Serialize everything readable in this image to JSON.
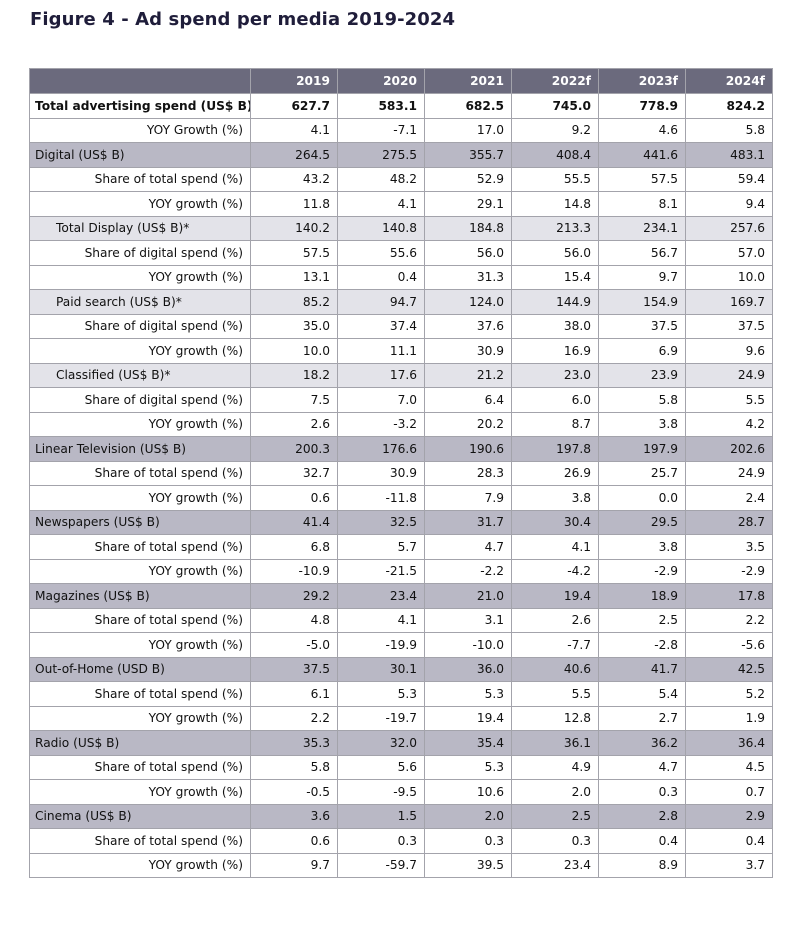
{
  "title": "Figure 4 - Ad spend per media 2019-2024",
  "chart_data": {
    "type": "table",
    "title": "Figure 4 - Ad spend per media 2019-2024",
    "columns": [
      "2019",
      "2020",
      "2021",
      "2022f",
      "2023f",
      "2024f"
    ],
    "rows": [
      {
        "label": "Total advertising spend (US$ B)",
        "level": "total",
        "values": [
          "627.7",
          "583.1",
          "682.5",
          "745.0",
          "778.9",
          "824.2"
        ]
      },
      {
        "label": "YOY Growth (%)",
        "level": "sub",
        "values": [
          "4.1",
          "-7.1",
          "17.0",
          "9.2",
          "4.6",
          "5.8"
        ]
      },
      {
        "label": "Digital (US$ B)",
        "level": "group",
        "values": [
          "264.5",
          "275.5",
          "355.7",
          "408.4",
          "441.6",
          "483.1"
        ]
      },
      {
        "label": "Share of total spend (%)",
        "level": "sub",
        "values": [
          "43.2",
          "48.2",
          "52.9",
          "55.5",
          "57.5",
          "59.4"
        ]
      },
      {
        "label": "YOY growth (%)",
        "level": "sub",
        "values": [
          "11.8",
          "4.1",
          "29.1",
          "14.8",
          "8.1",
          "9.4"
        ]
      },
      {
        "label": "Total Display (US$ B)*",
        "level": "subgroup",
        "values": [
          "140.2",
          "140.8",
          "184.8",
          "213.3",
          "234.1",
          "257.6"
        ]
      },
      {
        "label": "Share of digital spend (%)",
        "level": "sub",
        "values": [
          "57.5",
          "55.6",
          "56.0",
          "56.0",
          "56.7",
          "57.0"
        ]
      },
      {
        "label": "YOY growth (%)",
        "level": "sub",
        "values": [
          "13.1",
          "0.4",
          "31.3",
          "15.4",
          "9.7",
          "10.0"
        ]
      },
      {
        "label": "Paid search (US$ B)*",
        "level": "subgroup",
        "values": [
          "85.2",
          "94.7",
          "124.0",
          "144.9",
          "154.9",
          "169.7"
        ]
      },
      {
        "label": "Share of digital spend (%)",
        "level": "sub",
        "values": [
          "35.0",
          "37.4",
          "37.6",
          "38.0",
          "37.5",
          "37.5"
        ]
      },
      {
        "label": "YOY growth (%)",
        "level": "sub",
        "values": [
          "10.0",
          "11.1",
          "30.9",
          "16.9",
          "6.9",
          "9.6"
        ]
      },
      {
        "label": "Classified (US$ B)*",
        "level": "subgroup",
        "values": [
          "18.2",
          "17.6",
          "21.2",
          "23.0",
          "23.9",
          "24.9"
        ]
      },
      {
        "label": "Share of digital spend (%)",
        "level": "sub",
        "values": [
          "7.5",
          "7.0",
          "6.4",
          "6.0",
          "5.8",
          "5.5"
        ]
      },
      {
        "label": "YOY growth (%)",
        "level": "sub",
        "values": [
          "2.6",
          "-3.2",
          "20.2",
          "8.7",
          "3.8",
          "4.2"
        ]
      },
      {
        "label": "Linear Television (US$ B)",
        "level": "group",
        "values": [
          "200.3",
          "176.6",
          "190.6",
          "197.8",
          "197.9",
          "202.6"
        ]
      },
      {
        "label": "Share of total spend (%)",
        "level": "sub",
        "values": [
          "32.7",
          "30.9",
          "28.3",
          "26.9",
          "25.7",
          "24.9"
        ]
      },
      {
        "label": "YOY growth (%)",
        "level": "sub",
        "values": [
          "0.6",
          "-11.8",
          "7.9",
          "3.8",
          "0.0",
          "2.4"
        ]
      },
      {
        "label": "Newspapers (US$ B)",
        "level": "group",
        "values": [
          "41.4",
          "32.5",
          "31.7",
          "30.4",
          "29.5",
          "28.7"
        ]
      },
      {
        "label": "Share of total spend (%)",
        "level": "sub",
        "values": [
          "6.8",
          "5.7",
          "4.7",
          "4.1",
          "3.8",
          "3.5"
        ]
      },
      {
        "label": "YOY growth (%)",
        "level": "sub",
        "values": [
          "-10.9",
          "-21.5",
          "-2.2",
          "-4.2",
          "-2.9",
          "-2.9"
        ]
      },
      {
        "label": "Magazines (US$ B)",
        "level": "group",
        "values": [
          "29.2",
          "23.4",
          "21.0",
          "19.4",
          "18.9",
          "17.8"
        ]
      },
      {
        "label": "Share of total spend (%)",
        "level": "sub",
        "values": [
          "4.8",
          "4.1",
          "3.1",
          "2.6",
          "2.5",
          "2.2"
        ]
      },
      {
        "label": "YOY growth (%)",
        "level": "sub",
        "values": [
          "-5.0",
          "-19.9",
          "-10.0",
          "-7.7",
          "-2.8",
          "-5.6"
        ]
      },
      {
        "label": "Out-of-Home (USD B)",
        "level": "group",
        "values": [
          "37.5",
          "30.1",
          "36.0",
          "40.6",
          "41.7",
          "42.5"
        ]
      },
      {
        "label": "Share of total spend (%)",
        "level": "sub",
        "values": [
          "6.1",
          "5.3",
          "5.3",
          "5.5",
          "5.4",
          "5.2"
        ]
      },
      {
        "label": "YOY growth (%)",
        "level": "sub",
        "values": [
          "2.2",
          "-19.7",
          "19.4",
          "12.8",
          "2.7",
          "1.9"
        ]
      },
      {
        "label": "Radio (US$ B)",
        "level": "group",
        "values": [
          "35.3",
          "32.0",
          "35.4",
          "36.1",
          "36.2",
          "36.4"
        ]
      },
      {
        "label": "Share of total spend (%)",
        "level": "sub",
        "values": [
          "5.8",
          "5.6",
          "5.3",
          "4.9",
          "4.7",
          "4.5"
        ]
      },
      {
        "label": "YOY growth (%)",
        "level": "sub",
        "values": [
          "-0.5",
          "-9.5",
          "10.6",
          "2.0",
          "0.3",
          "0.7"
        ]
      },
      {
        "label": "Cinema (US$ B)",
        "level": "group",
        "values": [
          "3.6",
          "1.5",
          "2.0",
          "2.5",
          "2.8",
          "2.9"
        ]
      },
      {
        "label": "Share of total spend (%)",
        "level": "sub",
        "values": [
          "0.6",
          "0.3",
          "0.3",
          "0.3",
          "0.4",
          "0.4"
        ]
      },
      {
        "label": "YOY growth (%)",
        "level": "sub",
        "values": [
          "9.7",
          "-59.7",
          "39.5",
          "23.4",
          "8.9",
          "3.7"
        ]
      }
    ]
  },
  "colors": {
    "header_bg": "#6b6a7d",
    "group_bg": "#b9b8c5",
    "subgroup_bg": "#e3e3e9",
    "border": "#a3a3ab",
    "title": "#1f1d3a"
  }
}
